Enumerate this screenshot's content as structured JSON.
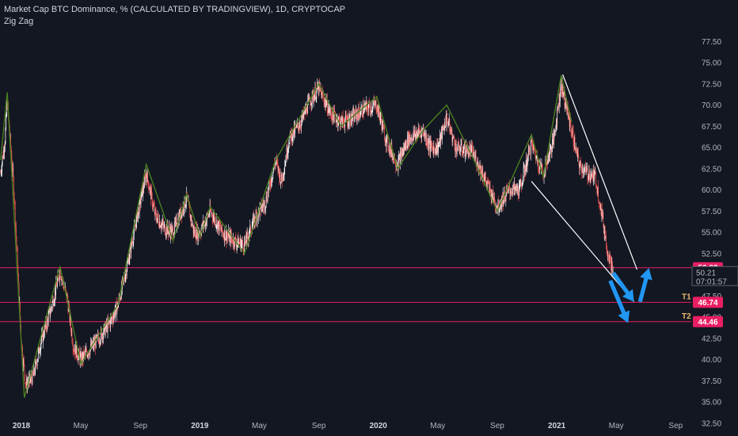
{
  "header": {
    "title": "Market Cap BTC Dominance, % (CALCULATED BY TRADINGVIEW), 1D, CRYPTOCAP",
    "indicator": "Zig Zag"
  },
  "colors": {
    "background": "#131722",
    "up_candle": "#ffffff",
    "down_candle": "#ef5350",
    "zigzag": "#4a7d1f",
    "level_line": "#e91e63",
    "trend_line": "#ffffff",
    "arrow": "#2196f3",
    "price_badge_bg": "#131722",
    "target_label": "#e8b96b"
  },
  "chart_data": {
    "type": "line",
    "title": "Market Cap BTC Dominance, % (CALCULATED BY TRADINGVIEW), 1D, CRYPTOCAP",
    "xlabel": "",
    "ylabel": "",
    "ylim": [
      31.25,
      78.75
    ],
    "y_ticks": [
      "77.50",
      "75.00",
      "72.50",
      "70.00",
      "67.50",
      "65.00",
      "62.50",
      "60.00",
      "57.50",
      "55.00",
      "52.50",
      "50.00",
      "47.50",
      "45.00",
      "42.50",
      "40.00",
      "37.50",
      "35.00",
      "32.50"
    ],
    "x_ticks": [
      {
        "label": "2018",
        "t": 0,
        "bold": true
      },
      {
        "label": "May",
        "t": 4,
        "bold": false
      },
      {
        "label": "Sep",
        "t": 8,
        "bold": false
      },
      {
        "label": "2019",
        "t": 12,
        "bold": true
      },
      {
        "label": "May",
        "t": 16,
        "bold": false
      },
      {
        "label": "Sep",
        "t": 20,
        "bold": false
      },
      {
        "label": "2020",
        "t": 24,
        "bold": true
      },
      {
        "label": "May",
        "t": 28,
        "bold": false
      },
      {
        "label": "Sep",
        "t": 32,
        "bold": false
      },
      {
        "label": "2021",
        "t": 36,
        "bold": true
      },
      {
        "label": "May",
        "t": 40,
        "bold": false
      },
      {
        "label": "Sep",
        "t": 44,
        "bold": false
      }
    ],
    "zigzag": [
      {
        "t": -1.4,
        "v": 63.5
      },
      {
        "t": -0.95,
        "v": 71.5
      },
      {
        "t": 0.2,
        "v": 35.5
      },
      {
        "t": 2.6,
        "v": 51.0
      },
      {
        "t": 4.0,
        "v": 39.5
      },
      {
        "t": 6.5,
        "v": 46.5
      },
      {
        "t": 8.4,
        "v": 63.0
      },
      {
        "t": 10.2,
        "v": 54.0
      },
      {
        "t": 11.1,
        "v": 59.5
      },
      {
        "t": 12.0,
        "v": 54.5
      },
      {
        "t": 12.7,
        "v": 58.0
      },
      {
        "t": 15.0,
        "v": 52.5
      },
      {
        "t": 17.1,
        "v": 63.5
      },
      {
        "t": 20.0,
        "v": 72.5
      },
      {
        "t": 21.5,
        "v": 67.5
      },
      {
        "t": 23.9,
        "v": 71.0
      },
      {
        "t": 25.3,
        "v": 62.5
      },
      {
        "t": 27.0,
        "v": 67.0
      },
      {
        "t": 28.6,
        "v": 70.0
      },
      {
        "t": 30.3,
        "v": 64.0
      },
      {
        "t": 32.0,
        "v": 57.5
      },
      {
        "t": 34.3,
        "v": 66.5
      },
      {
        "t": 35.1,
        "v": 61.5
      },
      {
        "t": 36.3,
        "v": 73.5
      },
      {
        "t": 37.0,
        "v": 68.0
      }
    ],
    "price_path": [
      {
        "t": -1.4,
        "v": 62.0
      },
      {
        "t": -1.1,
        "v": 66.0
      },
      {
        "t": -0.95,
        "v": 70.5
      },
      {
        "t": -0.5,
        "v": 60.0
      },
      {
        "t": 0.0,
        "v": 42.0
      },
      {
        "t": 0.3,
        "v": 37.0
      },
      {
        "t": 0.8,
        "v": 38.0
      },
      {
        "t": 1.3,
        "v": 42.0
      },
      {
        "t": 2.0,
        "v": 46.0
      },
      {
        "t": 2.6,
        "v": 50.5
      },
      {
        "t": 3.1,
        "v": 47.0
      },
      {
        "t": 3.5,
        "v": 41.5
      },
      {
        "t": 4.0,
        "v": 40.0
      },
      {
        "t": 5.0,
        "v": 42.0
      },
      {
        "t": 6.0,
        "v": 44.5
      },
      {
        "t": 6.5,
        "v": 46.5
      },
      {
        "t": 7.1,
        "v": 51.0
      },
      {
        "t": 7.8,
        "v": 57.0
      },
      {
        "t": 8.4,
        "v": 62.0
      },
      {
        "t": 9.0,
        "v": 57.0
      },
      {
        "t": 9.6,
        "v": 55.5
      },
      {
        "t": 10.2,
        "v": 55.0
      },
      {
        "t": 11.1,
        "v": 59.0
      },
      {
        "t": 11.6,
        "v": 55.0
      },
      {
        "t": 12.0,
        "v": 55.0
      },
      {
        "t": 12.7,
        "v": 57.5
      },
      {
        "t": 13.5,
        "v": 55.0
      },
      {
        "t": 14.3,
        "v": 54.0
      },
      {
        "t": 15.0,
        "v": 53.5
      },
      {
        "t": 15.8,
        "v": 57.0
      },
      {
        "t": 16.4,
        "v": 58.5
      },
      {
        "t": 17.1,
        "v": 63.5
      },
      {
        "t": 17.5,
        "v": 61.0
      },
      {
        "t": 18.0,
        "v": 66.0
      },
      {
        "t": 18.8,
        "v": 68.0
      },
      {
        "t": 19.4,
        "v": 70.5
      },
      {
        "t": 20.0,
        "v": 72.0
      },
      {
        "t": 20.8,
        "v": 69.0
      },
      {
        "t": 21.5,
        "v": 68.0
      },
      {
        "t": 22.3,
        "v": 68.5
      },
      {
        "t": 23.0,
        "v": 69.5
      },
      {
        "t": 23.9,
        "v": 70.0
      },
      {
        "t": 24.5,
        "v": 66.0
      },
      {
        "t": 25.3,
        "v": 63.0
      },
      {
        "t": 26.0,
        "v": 66.0
      },
      {
        "t": 27.0,
        "v": 67.0
      },
      {
        "t": 27.5,
        "v": 65.0
      },
      {
        "t": 28.0,
        "v": 65.0
      },
      {
        "t": 28.6,
        "v": 68.5
      },
      {
        "t": 29.2,
        "v": 65.0
      },
      {
        "t": 30.3,
        "v": 64.5
      },
      {
        "t": 31.0,
        "v": 62.0
      },
      {
        "t": 31.6,
        "v": 59.5
      },
      {
        "t": 32.0,
        "v": 58.0
      },
      {
        "t": 32.8,
        "v": 60.0
      },
      {
        "t": 33.5,
        "v": 60.0
      },
      {
        "t": 34.3,
        "v": 65.5
      },
      {
        "t": 34.7,
        "v": 63.5
      },
      {
        "t": 35.1,
        "v": 62.0
      },
      {
        "t": 35.8,
        "v": 66.0
      },
      {
        "t": 36.3,
        "v": 72.5
      },
      {
        "t": 37.0,
        "v": 67.0
      },
      {
        "t": 37.5,
        "v": 63.0
      },
      {
        "t": 38.0,
        "v": 62.0
      },
      {
        "t": 38.6,
        "v": 61.5
      },
      {
        "t": 39.0,
        "v": 57.5
      },
      {
        "t": 39.4,
        "v": 53.0
      },
      {
        "t": 39.8,
        "v": 50.2
      }
    ],
    "levels": [
      {
        "value": 50.82,
        "label": "50.82"
      },
      {
        "value": 46.74,
        "label": "46.74",
        "target": "T1"
      },
      {
        "value": 44.46,
        "label": "44.46",
        "target": "T2"
      }
    ],
    "current_price": "50.21",
    "countdown": "07:01:57",
    "trend_lines": [
      {
        "from": {
          "t": 36.4,
          "v": 73.6
        },
        "to": {
          "t": 41.4,
          "v": 50.6
        }
      },
      {
        "from": {
          "t": 34.3,
          "v": 61.0
        },
        "to": {
          "t": 41.2,
          "v": 46.8
        }
      }
    ],
    "arrows": [
      {
        "from": {
          "t": 39.8,
          "v": 50.2
        },
        "to": {
          "t": 41.2,
          "v": 46.8
        }
      },
      {
        "from": {
          "t": 39.6,
          "v": 49.3
        },
        "to": {
          "t": 40.8,
          "v": 44.3
        }
      },
      {
        "from": {
          "t": 41.6,
          "v": 46.8
        },
        "to": {
          "t": 42.2,
          "v": 50.8
        }
      }
    ]
  }
}
